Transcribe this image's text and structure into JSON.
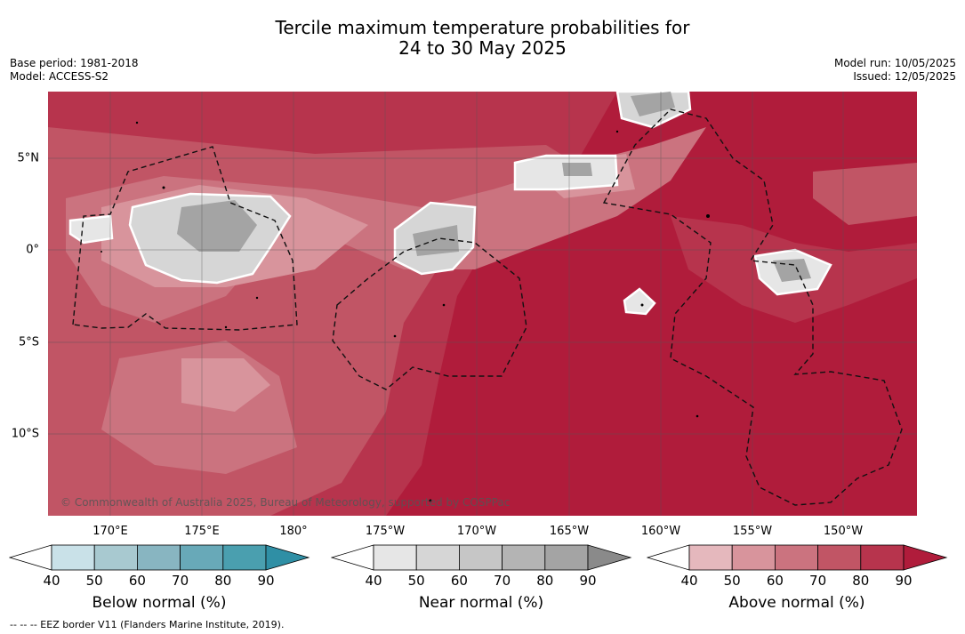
{
  "title_line1": "Tercile maximum temperature probabilities for",
  "title_line2": "24 to 30 May 2025",
  "meta_left": {
    "base_period": "Base period: 1981-2018",
    "model": "Model: ACCESS-S2"
  },
  "meta_right": {
    "model_run": "Model run: 10/05/2025",
    "issued": "Issued: 12/05/2025"
  },
  "lon_ticks": [
    "170°E",
    "175°E",
    "180°",
    "175°W",
    "170°W",
    "165°W",
    "160°W",
    "155°W",
    "150°W"
  ],
  "lat_ticks": [
    "5°N",
    "0°",
    "5°S",
    "10°S"
  ],
  "copyright": "© Commonwealth of Australia 2025, Bureau of Meteorology, supported by COSPPac",
  "colorbars": [
    {
      "label": "Below normal (%)",
      "ticks": [
        "40",
        "50",
        "60",
        "70",
        "80",
        "90"
      ],
      "colors": [
        "#c9e1e8",
        "#a8c9d0",
        "#88b5c1",
        "#68a9b8",
        "#4a9faf",
        "#2f8fa5"
      ]
    },
    {
      "label": "Near normal (%)",
      "ticks": [
        "40",
        "50",
        "60",
        "70",
        "80",
        "90"
      ],
      "colors": [
        "#e6e6e6",
        "#d6d6d6",
        "#c6c6c6",
        "#b4b4b4",
        "#a4a4a4",
        "#8a8a8a"
      ]
    },
    {
      "label": "Above normal (%)",
      "ticks": [
        "40",
        "50",
        "60",
        "70",
        "80",
        "90"
      ],
      "colors": [
        "#e5b8bd",
        "#d8949c",
        "#cb737f",
        "#c15565",
        "#b7344d",
        "#b01c3b"
      ]
    }
  ],
  "footnote": "--  --  -- EEZ border V11 (Flanders Marine Institute, 2019)."
}
